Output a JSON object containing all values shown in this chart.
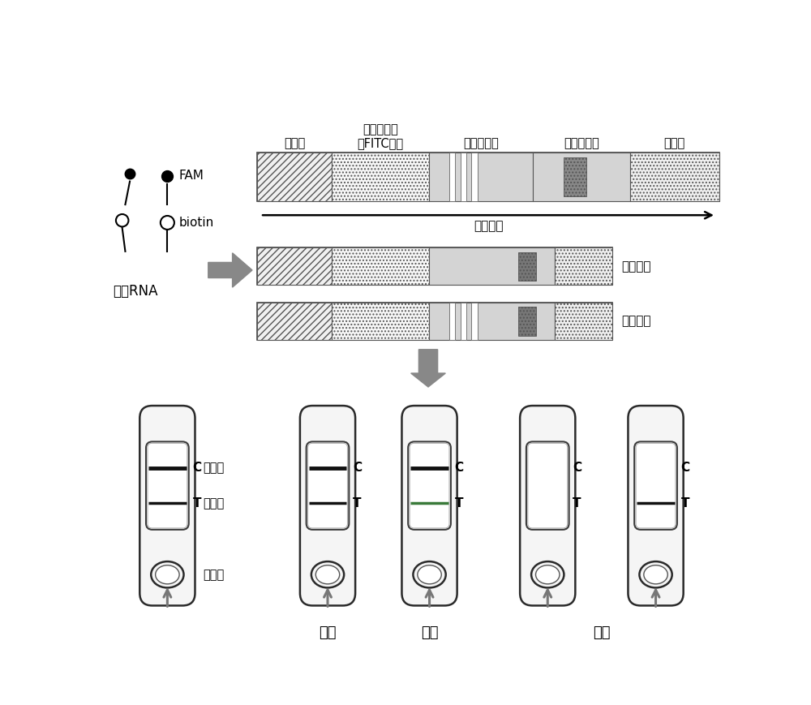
{
  "bg_color": "#ffffff",
  "top_labels": [
    "样品板",
    "纳米金标免\n抗FITC抗体",
    "链亲和素线",
    "抗体捕获线",
    "吸收板"
  ],
  "flow_label": "流动方向",
  "positive_label": "阳性实验",
  "negative_label": "阴性试验",
  "left_legend": {
    "fam_label": "FAM",
    "biotin_label": "biotin",
    "rna_label": "报告RNA"
  },
  "bottom_labels": {
    "neg": "阴性",
    "pos": "阳性",
    "invalid": "无效"
  },
  "strip_texts": {
    "C_label": "C",
    "T_label": "T",
    "control_line": "质控线",
    "detect_line": "检测线",
    "sample_hole": "样品孔"
  },
  "colors": {
    "hatch_diag_fc": "#ffffff",
    "hatch_dot_fc": "#ffffff",
    "strip_gray_bg": "#c8c8c8",
    "strip_light_bg": "#d8d8d8",
    "dark_line": "#111111",
    "gray_line": "#aaaaaa",
    "arrow_gray": "#888888",
    "device_bg": "#f8f8f8",
    "device_border": "#222222"
  }
}
